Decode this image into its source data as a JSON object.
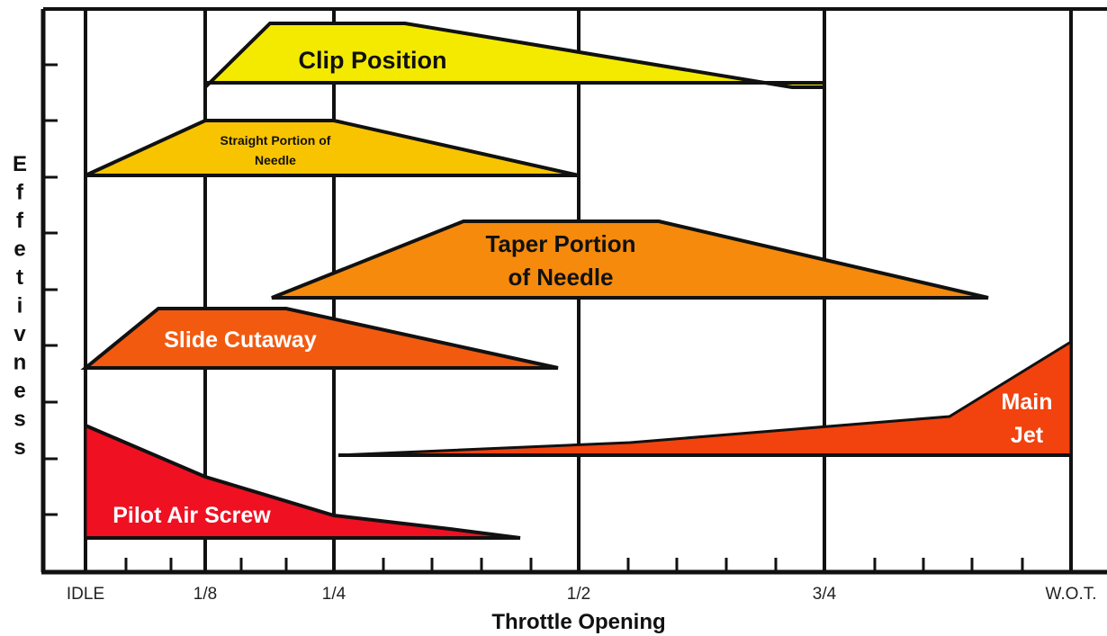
{
  "diagram": {
    "y_axis_label": "Effetivness",
    "x_axis_label": "Throttle Opening",
    "x_ticks": [
      "IDLE",
      "1/8",
      "1/4",
      "1/2",
      "3/4",
      "W.O.T."
    ],
    "colors": {
      "clip_position": "#f4ea00",
      "straight_portion": "#f8c400",
      "taper_portion": "#f58a0c",
      "slide_cutaway": "#f25a10",
      "main_jet": "#f2420e",
      "pilot_air_screw": "#ef1022",
      "frame": "#111111"
    },
    "bands": [
      {
        "id": "clip_position",
        "label_lines": [
          "Clip Position"
        ]
      },
      {
        "id": "straight_portion",
        "label_lines": [
          "Straight Portion of",
          "Needle"
        ]
      },
      {
        "id": "taper_portion",
        "label_lines": [
          "Taper Portion",
          "of Needle"
        ]
      },
      {
        "id": "slide_cutaway",
        "label_lines": [
          "Slide Cutaway"
        ]
      },
      {
        "id": "main_jet",
        "label_lines": [
          "Main",
          "Jet"
        ]
      },
      {
        "id": "pilot_air_screw",
        "label_lines": [
          "Pilot Air Screw"
        ]
      }
    ]
  }
}
